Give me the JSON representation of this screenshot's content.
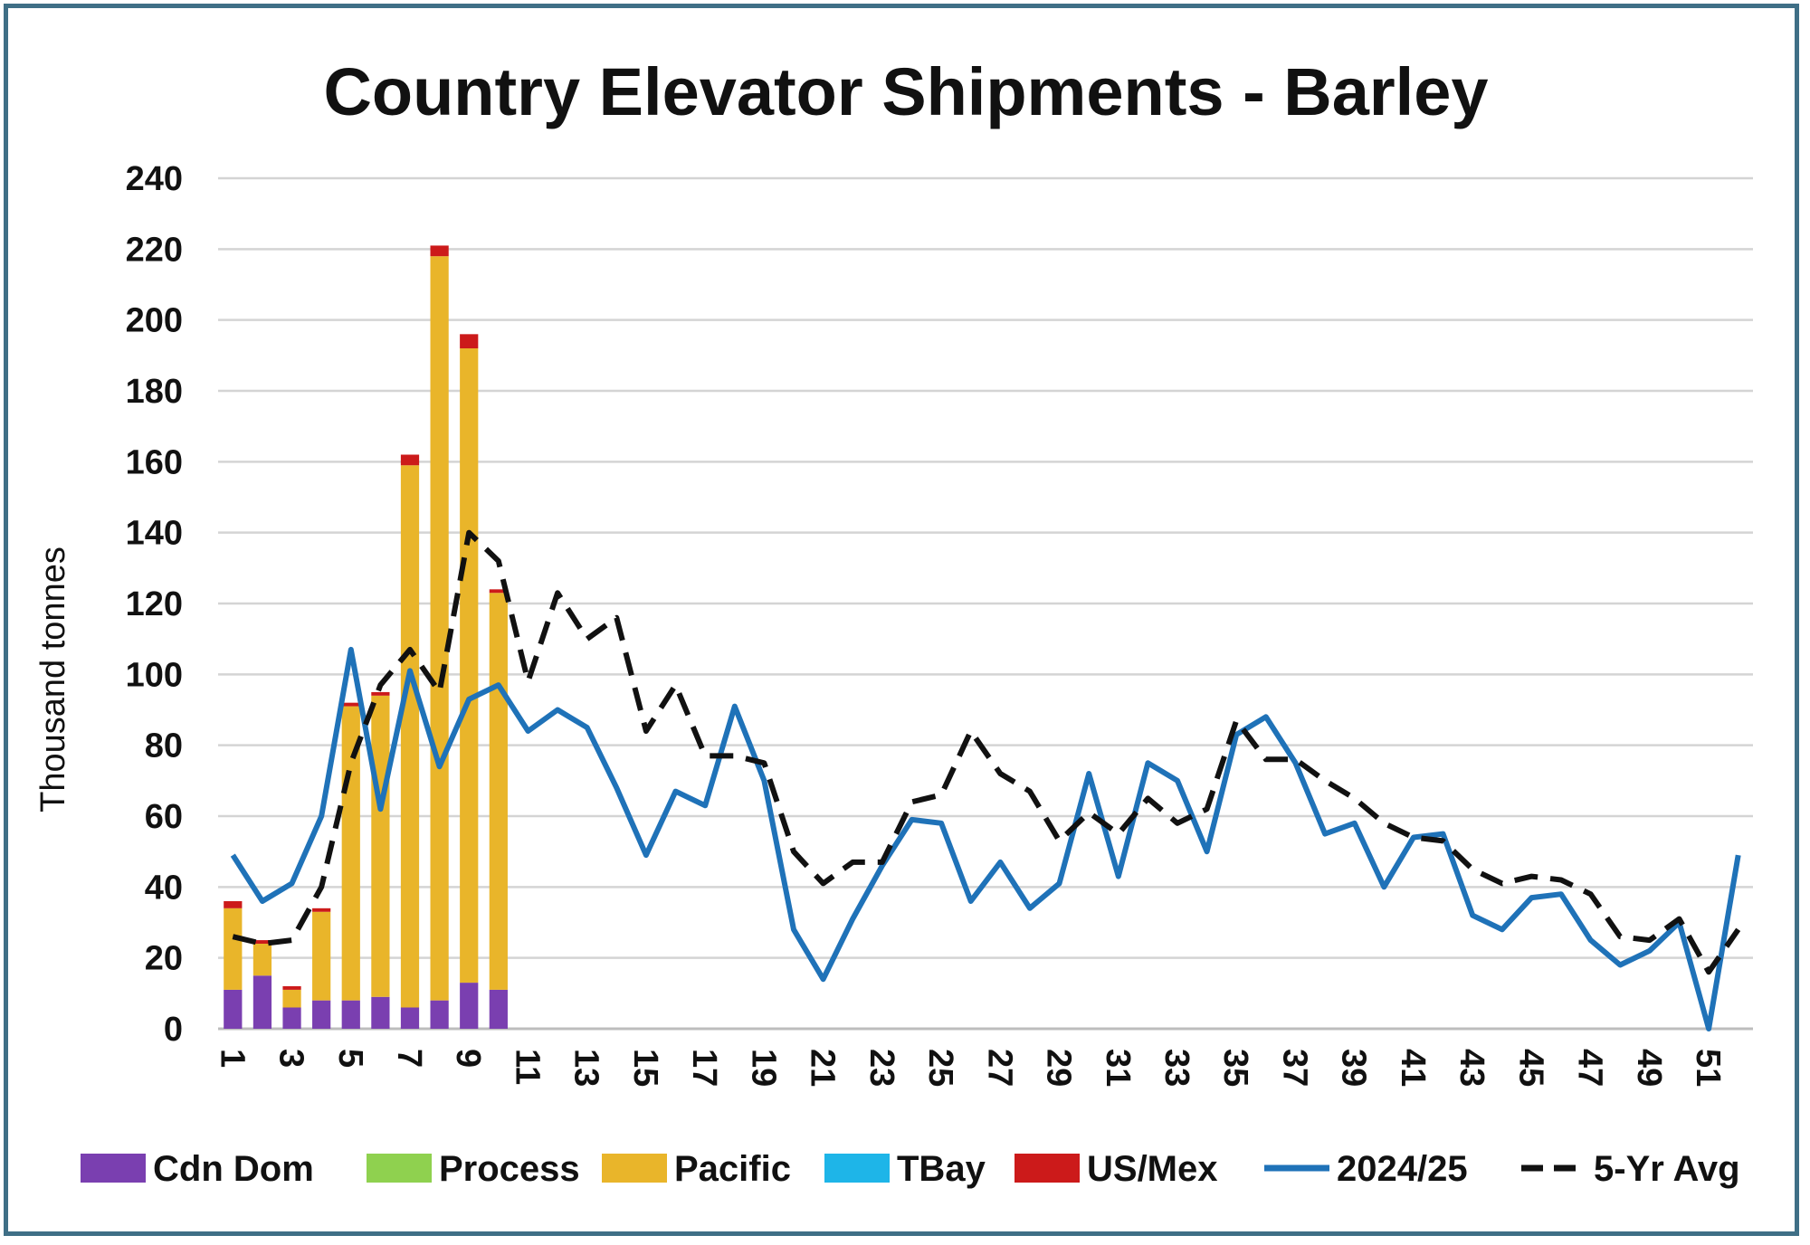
{
  "chart_data": {
    "type": "bar",
    "title": "Country Elevator Shipments - Barley",
    "xlabel": "",
    "ylabel": "Thousand tonnes",
    "ylim": [
      0,
      240
    ],
    "y_ticks": [
      0,
      20,
      40,
      60,
      80,
      100,
      120,
      140,
      160,
      180,
      200,
      220,
      240
    ],
    "x_tick_labels": [
      "1",
      "3",
      "5",
      "7",
      "9",
      "11",
      "13",
      "15",
      "17",
      "19",
      "21",
      "23",
      "25",
      "27",
      "29",
      "31",
      "33",
      "35",
      "37",
      "39",
      "41",
      "43",
      "45",
      "47",
      "49",
      "51"
    ],
    "categories": [
      1,
      2,
      3,
      4,
      5,
      6,
      7,
      8,
      9,
      10,
      11,
      12,
      13,
      14,
      15,
      16,
      17,
      18,
      19,
      20,
      21,
      22,
      23,
      24,
      25,
      26,
      27,
      28,
      29,
      30,
      31,
      32,
      33,
      34,
      35,
      36,
      37,
      38,
      39,
      40,
      41,
      42,
      43,
      44,
      45,
      46,
      47,
      48,
      49,
      50,
      51,
      52
    ],
    "grid": true,
    "legend_position": "bottom",
    "stacked_series": [
      {
        "name": "Cdn Dom",
        "color": "#7a3fb0",
        "values": [
          11,
          15,
          6,
          8,
          8,
          9,
          6,
          8,
          13,
          11
        ]
      },
      {
        "name": "Process",
        "color": "#8fd14f",
        "values": [
          0,
          0,
          0,
          0,
          0,
          0,
          0,
          0,
          0,
          0
        ]
      },
      {
        "name": "Pacific",
        "color": "#e9b52a",
        "values": [
          23,
          9,
          5,
          25,
          83,
          85,
          153,
          210,
          179,
          112
        ]
      },
      {
        "name": "TBay",
        "color": "#1eb5e8",
        "values": [
          0,
          0,
          0,
          0,
          0,
          0,
          0,
          0,
          0,
          0
        ]
      },
      {
        "name": "US/Mex",
        "color": "#cc1a1a",
        "values": [
          2,
          1,
          1,
          1,
          1,
          1,
          3,
          3,
          4,
          1
        ]
      }
    ],
    "line_series": [
      {
        "name": "2024/25",
        "color": "#1f72b8",
        "style": "solid",
        "values": [
          49,
          36,
          41,
          60,
          107,
          62,
          101,
          74,
          93,
          97,
          84,
          90,
          85,
          68,
          49,
          67,
          63,
          91,
          70,
          28,
          14,
          31,
          46,
          59,
          58,
          36,
          47,
          34,
          41,
          72,
          43,
          75,
          70,
          50,
          83,
          88,
          75,
          55,
          58,
          40,
          54,
          55,
          32,
          28,
          37,
          38,
          25,
          18,
          22,
          30,
          0,
          49
        ]
      },
      {
        "name": "5-Yr Avg",
        "color": "#111111",
        "style": "dashed",
        "values": [
          26,
          24,
          25,
          40,
          75,
          97,
          107,
          95,
          140,
          132,
          98,
          123,
          110,
          116,
          84,
          97,
          77,
          77,
          75,
          50,
          41,
          47,
          47,
          64,
          66,
          84,
          72,
          67,
          53,
          61,
          55,
          65,
          58,
          62,
          87,
          76,
          76,
          70,
          65,
          58,
          54,
          53,
          45,
          41,
          43,
          42,
          38,
          26,
          25,
          31,
          16,
          28
        ]
      }
    ],
    "legend": [
      "Cdn Dom",
      "Process",
      "Pacific",
      "TBay",
      "US/Mex",
      "2024/25",
      "5-Yr Avg"
    ]
  }
}
